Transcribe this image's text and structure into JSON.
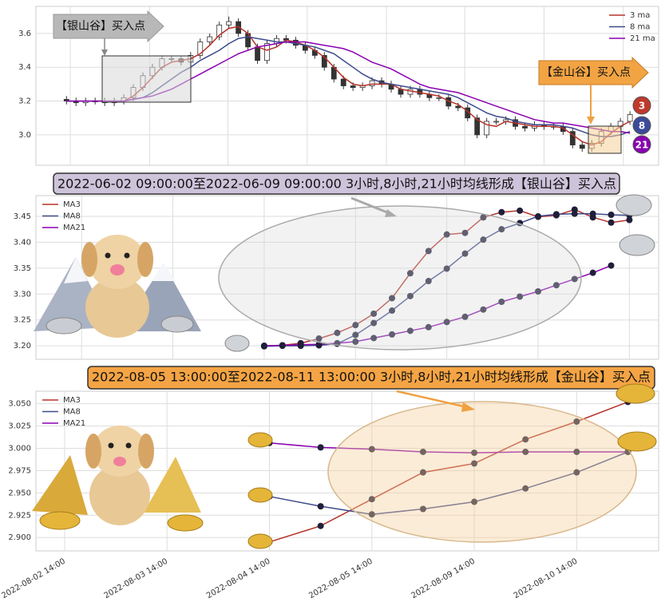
{
  "chart_data": [
    {
      "type": "candlestick",
      "annotations": [
        "【银山谷】买入点",
        "【金山谷】买入点"
      ],
      "badges": [
        "3",
        "8",
        "21"
      ],
      "open": [
        3.21,
        3.2,
        3.19,
        3.2,
        3.2,
        3.19,
        3.2,
        3.22,
        3.28,
        3.35,
        3.4,
        3.45,
        3.45,
        3.43,
        3.47,
        3.55,
        3.58,
        3.65,
        3.67,
        3.6,
        3.52,
        3.44,
        3.54,
        3.57,
        3.56,
        3.53,
        3.5,
        3.47,
        3.4,
        3.33,
        3.29,
        3.28,
        3.29,
        3.32,
        3.3,
        3.27,
        3.24,
        3.27,
        3.24,
        3.22,
        3.22,
        3.17,
        3.16,
        3.1,
        3.0,
        3.08,
        3.08,
        3.09,
        3.05,
        3.04,
        3.06,
        3.05,
        3.05,
        3.02,
        2.94,
        2.92,
        2.95,
        3.02,
        3.05,
        3.08
      ],
      "high": [
        3.23,
        3.22,
        3.22,
        3.22,
        3.22,
        3.22,
        3.24,
        3.3,
        3.37,
        3.42,
        3.47,
        3.47,
        3.47,
        3.49,
        3.57,
        3.6,
        3.67,
        3.7,
        3.69,
        3.62,
        3.54,
        3.56,
        3.59,
        3.59,
        3.58,
        3.55,
        3.52,
        3.49,
        3.42,
        3.35,
        3.31,
        3.31,
        3.34,
        3.34,
        3.32,
        3.29,
        3.29,
        3.29,
        3.26,
        3.24,
        3.24,
        3.19,
        3.18,
        3.12,
        3.1,
        3.1,
        3.11,
        3.11,
        3.07,
        3.08,
        3.08,
        3.07,
        3.07,
        3.04,
        2.96,
        2.97,
        3.04,
        3.07,
        3.1,
        3.14
      ],
      "low": [
        3.18,
        3.17,
        3.17,
        3.18,
        3.17,
        3.17,
        3.18,
        3.2,
        3.26,
        3.33,
        3.38,
        3.43,
        3.41,
        3.41,
        3.45,
        3.53,
        3.56,
        3.63,
        3.58,
        3.5,
        3.42,
        3.42,
        3.52,
        3.54,
        3.51,
        3.48,
        3.45,
        3.38,
        3.31,
        3.27,
        3.26,
        3.26,
        3.27,
        3.28,
        3.25,
        3.22,
        3.22,
        3.22,
        3.2,
        3.2,
        3.15,
        3.14,
        3.08,
        2.98,
        2.98,
        3.06,
        3.06,
        3.03,
        3.02,
        3.02,
        3.03,
        3.03,
        3.0,
        2.92,
        2.9,
        2.9,
        2.93,
        3.0,
        3.03,
        3.06
      ],
      "close": [
        3.2,
        3.19,
        3.2,
        3.2,
        3.19,
        3.2,
        3.22,
        3.28,
        3.35,
        3.4,
        3.45,
        3.45,
        3.43,
        3.47,
        3.55,
        3.58,
        3.65,
        3.67,
        3.6,
        3.52,
        3.44,
        3.54,
        3.57,
        3.56,
        3.53,
        3.5,
        3.47,
        3.4,
        3.33,
        3.29,
        3.28,
        3.29,
        3.32,
        3.3,
        3.27,
        3.24,
        3.27,
        3.24,
        3.22,
        3.22,
        3.17,
        3.16,
        3.1,
        3.0,
        3.08,
        3.08,
        3.09,
        3.05,
        3.04,
        3.06,
        3.05,
        3.05,
        3.02,
        2.94,
        2.92,
        2.95,
        3.02,
        3.05,
        3.08,
        3.12
      ],
      "up_color": "#ffffff",
      "down_color": "#333333",
      "series": [
        {
          "name": "3 ma",
          "color": "#b5332a",
          "values": [
            3.2,
            3.2,
            3.2,
            3.2,
            3.2,
            3.2,
            3.2,
            3.23,
            3.28,
            3.34,
            3.4,
            3.43,
            3.44,
            3.45,
            3.48,
            3.53,
            3.59,
            3.63,
            3.64,
            3.6,
            3.52,
            3.5,
            3.52,
            3.56,
            3.55,
            3.53,
            3.5,
            3.46,
            3.4,
            3.34,
            3.3,
            3.29,
            3.3,
            3.3,
            3.3,
            3.27,
            3.26,
            3.25,
            3.24,
            3.23,
            3.2,
            3.18,
            3.14,
            3.09,
            3.06,
            3.05,
            3.08,
            3.07,
            3.06,
            3.05,
            3.05,
            3.05,
            3.04,
            3.0,
            2.96,
            2.94,
            2.96,
            3.01,
            3.05,
            3.08
          ]
        },
        {
          "name": "8 ma",
          "color": "#3d4a8c",
          "values": [
            3.2,
            3.2,
            3.2,
            3.2,
            3.2,
            3.2,
            3.2,
            3.21,
            3.22,
            3.25,
            3.29,
            3.33,
            3.37,
            3.4,
            3.44,
            3.47,
            3.5,
            3.54,
            3.57,
            3.58,
            3.57,
            3.56,
            3.55,
            3.55,
            3.54,
            3.53,
            3.52,
            3.5,
            3.48,
            3.44,
            3.4,
            3.36,
            3.33,
            3.31,
            3.3,
            3.29,
            3.28,
            3.27,
            3.26,
            3.25,
            3.24,
            3.22,
            3.19,
            3.16,
            3.13,
            3.11,
            3.1,
            3.08,
            3.07,
            3.06,
            3.06,
            3.06,
            3.05,
            3.04,
            3.02,
            3.0,
            2.99,
            2.99,
            3.0,
            3.02
          ]
        },
        {
          "name": "21 ma",
          "color": "#8a00b0",
          "values": [
            3.2,
            3.2,
            3.2,
            3.2,
            3.2,
            3.2,
            3.2,
            3.21,
            3.22,
            3.23,
            3.25,
            3.27,
            3.3,
            3.33,
            3.36,
            3.39,
            3.42,
            3.45,
            3.48,
            3.5,
            3.52,
            3.53,
            3.54,
            3.55,
            3.55,
            3.55,
            3.54,
            3.53,
            3.52,
            3.51,
            3.49,
            3.46,
            3.43,
            3.41,
            3.39,
            3.36,
            3.33,
            3.3,
            3.28,
            3.27,
            3.26,
            3.25,
            3.23,
            3.21,
            3.19,
            3.17,
            3.15,
            3.13,
            3.11,
            3.09,
            3.08,
            3.07,
            3.07,
            3.06,
            3.05,
            3.04,
            3.03,
            3.02,
            3.02,
            3.01
          ]
        }
      ],
      "xlim": [
        -3.2,
        62
      ],
      "xticks": [
        0.4,
        8.7,
        16.9,
        25.2,
        33.5,
        41.7,
        50,
        58.3
      ],
      "ylim": [
        2.82,
        3.76
      ],
      "yticks": [
        {
          "value": 3.0,
          "label": "3.0"
        },
        3.2,
        3.4,
        3.6
      ],
      "grid": true,
      "legend": "upper right"
    },
    {
      "type": "line",
      "title": "2022-06-02 09:00:00至2022-06-09 09:00:00 3小时,8小时,21小时均线形成【银山谷】买入点",
      "x": [
        0,
        1,
        2,
        3,
        4,
        5,
        6,
        7,
        8,
        9,
        10,
        11,
        12,
        13,
        14,
        15,
        16,
        17,
        18,
        19,
        20
      ],
      "series": [
        {
          "name": "MA3",
          "color": "#b5332a",
          "values": [
            3.2,
            3.201,
            3.205,
            3.214,
            3.225,
            3.24,
            3.262,
            3.292,
            3.34,
            3.383,
            3.415,
            3.418,
            3.448,
            3.458,
            3.461,
            3.449,
            3.452,
            3.463,
            3.448,
            3.438,
            3.443
          ]
        },
        {
          "name": "MA8",
          "color": "#3d4a8c",
          "values": [
            3.199,
            3.2,
            3.2,
            3.201,
            3.204,
            3.221,
            3.244,
            3.268,
            3.296,
            3.325,
            3.349,
            3.378,
            3.405,
            3.425,
            3.437,
            3.45,
            3.454,
            3.455,
            3.455,
            3.453,
            3.452
          ]
        },
        {
          "name": "MA21",
          "color": "#8a00b0",
          "values": [
            3.2,
            3.201,
            3.202,
            3.203,
            3.205,
            3.208,
            3.215,
            3.222,
            3.229,
            3.236,
            3.246,
            3.256,
            3.27,
            3.285,
            3.295,
            3.305,
            3.317,
            3.329,
            3.341,
            3.355,
            null
          ]
        }
      ],
      "markers": true,
      "marker_color": "#1f1f3a",
      "xlim": [
        -12.5,
        21.6
      ],
      "xticks": [
        -10,
        -5,
        0,
        5,
        10,
        15,
        20
      ],
      "ylim": [
        3.174,
        3.49
      ],
      "yticks": [
        {
          "value": 3.2,
          "label": "3.20"
        },
        3.25,
        {
          "value": 3.3,
          "label": "3.30"
        },
        3.35,
        {
          "value": 3.4,
          "label": "3.40"
        },
        3.45
      ],
      "grid": true,
      "legend": "upper left"
    },
    {
      "type": "line",
      "title": "2022-08-05 13:00:00至2022-08-11 13:00:00 3小时,8小时,21小时均线形成【金山谷】买入点",
      "x": [
        4,
        5,
        6,
        7,
        8,
        9,
        10,
        11
      ],
      "series": [
        {
          "name": "MA3",
          "color": "#b5332a",
          "values": [
            2.895,
            2.913,
            2.943,
            2.973,
            2.983,
            3.01,
            3.03,
            3.052
          ]
        },
        {
          "name": "MA8",
          "color": "#3d4a8c",
          "values": [
            2.946,
            2.935,
            2.926,
            2.932,
            2.94,
            2.955,
            2.973,
            2.996
          ]
        },
        {
          "name": "MA21",
          "color": "#8a00b0",
          "values": [
            3.006,
            3.001,
            2.999,
            2.996,
            2.995,
            2.996,
            2.996,
            2.996
          ]
        }
      ],
      "markers": true,
      "marker_color": "#1f1f3a",
      "xlim": [
        -0.56,
        11.6
      ],
      "xticks": [
        {
          "value": 0,
          "label": "2022-08-02 14:00"
        },
        {
          "value": 2,
          "label": "2022-08-03 14:00"
        },
        {
          "value": 4,
          "label": "2022-08-04 14:00"
        },
        {
          "value": 6,
          "label": "2022-08-05 14:00"
        },
        {
          "value": 8,
          "label": "2022-08-09 14:00"
        },
        {
          "value": 10,
          "label": "2022-08-10 14:00"
        }
      ],
      "ylim": [
        2.885,
        3.064
      ],
      "yticks": [
        {
          "value": 2.9,
          "label": "2.900"
        },
        2.925,
        {
          "value": 2.95,
          "label": "2.950"
        },
        2.975,
        {
          "value": 3.0,
          "label": "3.000"
        },
        3.025,
        {
          "value": 3.05,
          "label": "3.050"
        }
      ],
      "grid": true,
      "legend": "upper left"
    }
  ]
}
